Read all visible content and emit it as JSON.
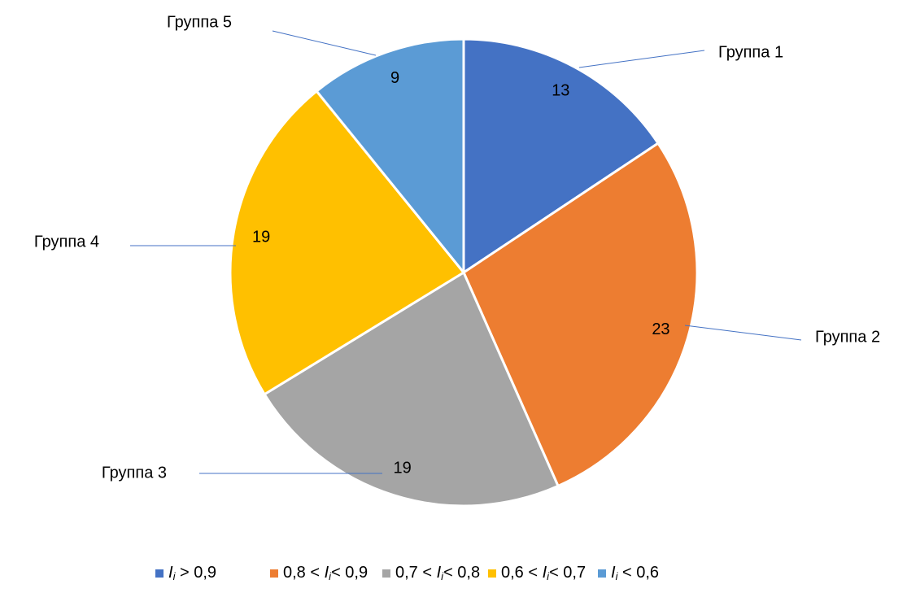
{
  "chart_data": {
    "type": "pie",
    "categories": [
      "Группа 1",
      "Группа 2",
      "Группа 3",
      "Группа 4",
      "Группа 5"
    ],
    "values": [
      13,
      23,
      19,
      19,
      9
    ],
    "colors": [
      "#4472c4",
      "#ed7d31",
      "#a5a5a5",
      "#ffc000",
      "#5b9bd5"
    ],
    "legend": [
      {
        "variable": "I",
        "subscript": "i",
        "text_after": " > 0,9"
      },
      {
        "text_before": "0,8 < ",
        "variable": "I",
        "subscript": "i",
        "text_after": "< 0,9"
      },
      {
        "text_before": "0,7 < ",
        "variable": "I",
        "subscript": "i",
        "text_after": "< 0,8"
      },
      {
        "text_before": "0,6 < ",
        "variable": "I",
        "subscript": "i",
        "text_after": "< 0,7"
      },
      {
        "variable": "I",
        "subscript": "i",
        "text_after": " < 0,6"
      }
    ],
    "legend_position": "bottom"
  }
}
